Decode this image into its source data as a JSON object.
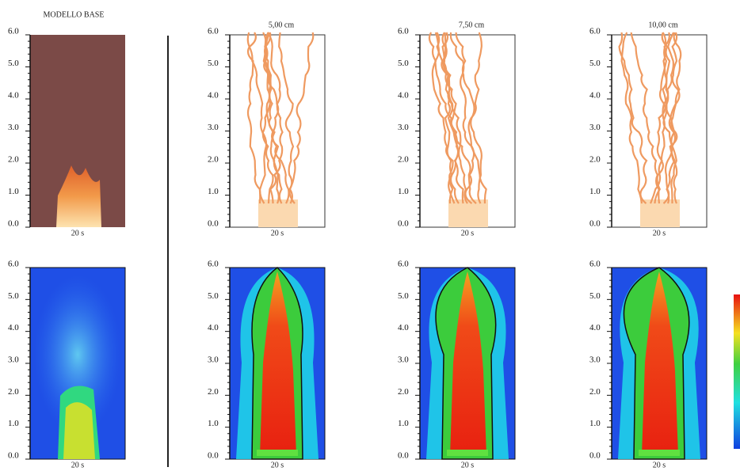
{
  "columns": [
    {
      "title": "MODELLO BASE",
      "top_time": "20 s",
      "bottom_time": "20 s"
    },
    {
      "title": "5,00 cm",
      "top_time": "20 s",
      "bottom_time": "20 s"
    },
    {
      "title": "7,50 cm",
      "top_time": "20 s",
      "bottom_time": "20 s"
    },
    {
      "title": "10,00 cm",
      "top_time": "20 s",
      "bottom_time": "20 s"
    }
  ],
  "axis_ticks": [
    "0.0",
    "1.0",
    "2.0",
    "3.0",
    "4.0",
    "5.0",
    "6.0"
  ]
}
